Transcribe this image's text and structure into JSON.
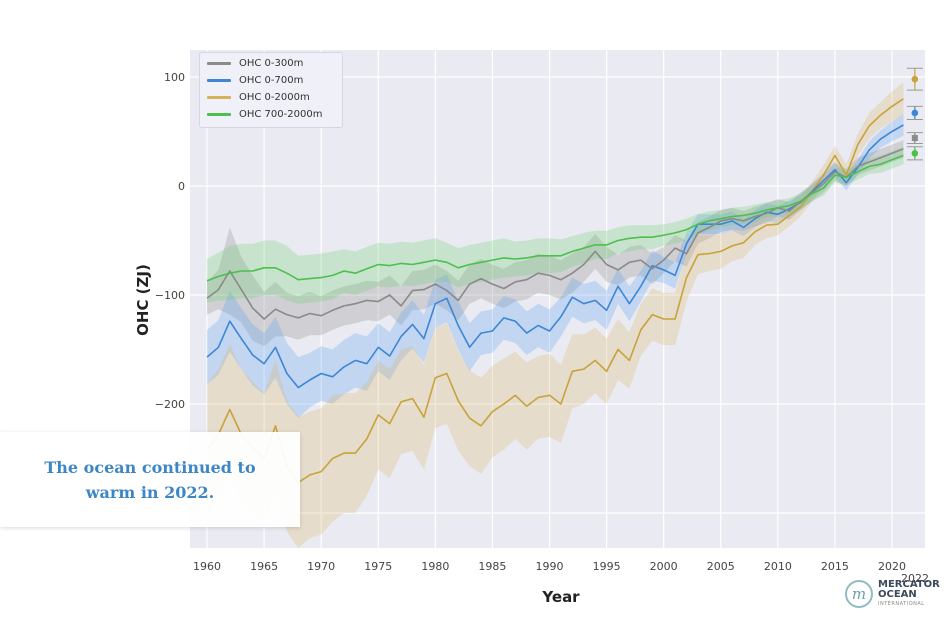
{
  "chart_data": {
    "type": "line",
    "title": "",
    "xlabel": "Year",
    "ylabel": "OHC (ZJ)",
    "xlim": [
      1958.5,
      2023
    ],
    "ylim": [
      -330,
      122
    ],
    "grid": true,
    "legend_position": "top-left",
    "x_ticks": [
      "1960",
      "1965",
      "1970",
      "1975",
      "1980",
      "1985",
      "1990",
      "1995",
      "2000",
      "2005",
      "2010",
      "2015",
      "2020"
    ],
    "y_ticks": [
      "100",
      "0",
      "−100",
      "−200"
    ],
    "extra_x_label": "2022",
    "x": [
      1960,
      1961,
      1962,
      1963,
      1964,
      1965,
      1966,
      1967,
      1968,
      1969,
      1970,
      1971,
      1972,
      1973,
      1974,
      1975,
      1976,
      1977,
      1978,
      1979,
      1980,
      1981,
      1982,
      1983,
      1984,
      1985,
      1986,
      1987,
      1988,
      1989,
      1990,
      1991,
      1992,
      1993,
      1994,
      1995,
      1996,
      1997,
      1998,
      1999,
      2000,
      2001,
      2002,
      2003,
      2004,
      2005,
      2006,
      2007,
      2008,
      2009,
      2010,
      2011,
      2012,
      2013,
      2014,
      2015,
      2016,
      2017,
      2018,
      2019,
      2020,
      2021
    ],
    "series": [
      {
        "name": "OHC 0-300m",
        "color": "#8a8a8a",
        "band_color": "#8a8a8a",
        "values": [
          -103,
          -95,
          -78,
          -95,
          -112,
          -122,
          -113,
          -118,
          -121,
          -117,
          -119,
          -114,
          -110,
          -108,
          -105,
          -106,
          -100,
          -110,
          -96,
          -95,
          -90,
          -96,
          -105,
          -90,
          -85,
          -90,
          -94,
          -88,
          -86,
          -80,
          -82,
          -86,
          -80,
          -72,
          -60,
          -72,
          -77,
          -70,
          -68,
          -76,
          -68,
          -57,
          -62,
          -43,
          -38,
          -32,
          -30,
          -32,
          -28,
          -25,
          -20,
          -23,
          -14,
          -6,
          2,
          13,
          8,
          18,
          22,
          26,
          30,
          34
        ],
        "band": [
          15,
          18,
          40,
          30,
          30,
          25,
          25,
          20,
          20,
          20,
          18,
          18,
          18,
          18,
          18,
          18,
          18,
          18,
          18,
          18,
          18,
          18,
          18,
          18,
          18,
          18,
          18,
          18,
          18,
          18,
          18,
          18,
          18,
          16,
          16,
          16,
          14,
          14,
          14,
          14,
          12,
          12,
          12,
          10,
          10,
          10,
          10,
          9,
          9,
          9,
          8,
          8,
          8,
          8,
          8,
          8,
          8,
          8,
          8,
          8,
          8,
          8
        ]
      },
      {
        "name": "OHC 0-700m",
        "color": "#3d86d6",
        "band_color": "#5aa0f0",
        "values": [
          -157,
          -148,
          -124,
          -140,
          -155,
          -163,
          -148,
          -172,
          -185,
          -178,
          -172,
          -175,
          -166,
          -160,
          -163,
          -148,
          -156,
          -138,
          -127,
          -140,
          -108,
          -103,
          -128,
          -148,
          -135,
          -133,
          -121,
          -124,
          -135,
          -128,
          -133,
          -120,
          -102,
          -108,
          -105,
          -114,
          -92,
          -108,
          -92,
          -73,
          -77,
          -82,
          -53,
          -35,
          -35,
          -35,
          -32,
          -38,
          -30,
          -24,
          -26,
          -21,
          -15,
          -5,
          5,
          15,
          3,
          17,
          33,
          43,
          50,
          56
        ],
        "band": [
          25,
          25,
          28,
          28,
          28,
          28,
          28,
          28,
          28,
          25,
          25,
          25,
          25,
          25,
          25,
          22,
          22,
          22,
          22,
          22,
          22,
          22,
          22,
          22,
          20,
          20,
          20,
          20,
          20,
          20,
          20,
          18,
          18,
          18,
          18,
          18,
          16,
          16,
          14,
          14,
          12,
          12,
          10,
          9,
          9,
          9,
          9,
          8,
          8,
          8,
          8,
          8,
          7,
          7,
          7,
          7,
          7,
          7,
          8,
          8,
          9,
          10
        ]
      },
      {
        "name": "OHC 0-2000m",
        "color": "#c9a23a",
        "band_color": "#d9b66a",
        "values": [
          -242,
          -228,
          -205,
          -228,
          -240,
          -250,
          -220,
          -257,
          -272,
          -265,
          -262,
          -250,
          -245,
          -245,
          -232,
          -210,
          -218,
          -198,
          -195,
          -212,
          -176,
          -172,
          -197,
          -213,
          -220,
          -207,
          -200,
          -192,
          -202,
          -194,
          -192,
          -200,
          -170,
          -168,
          -160,
          -170,
          -150,
          -160,
          -132,
          -118,
          -122,
          -122,
          -84,
          -63,
          -62,
          -60,
          -55,
          -52,
          -42,
          -36,
          -35,
          -27,
          -19,
          -5,
          10,
          28,
          10,
          38,
          55,
          65,
          73,
          80
        ],
        "band": [
          60,
          60,
          60,
          60,
          60,
          60,
          60,
          60,
          60,
          58,
          58,
          58,
          55,
          55,
          52,
          50,
          50,
          48,
          48,
          48,
          46,
          46,
          46,
          44,
          44,
          42,
          42,
          40,
          40,
          38,
          38,
          36,
          34,
          32,
          30,
          30,
          28,
          26,
          24,
          24,
          24,
          24,
          22,
          18,
          16,
          16,
          14,
          14,
          12,
          12,
          10,
          10,
          9,
          9,
          9,
          9,
          10,
          10,
          12,
          12,
          14,
          15
        ]
      },
      {
        "name": "OHC 700-2000m",
        "color": "#4cbf4c",
        "band_color": "#6fd06f",
        "values": [
          -87,
          -83,
          -80,
          -78,
          -78,
          -75,
          -75,
          -80,
          -86,
          -85,
          -84,
          -82,
          -78,
          -80,
          -76,
          -72,
          -73,
          -71,
          -72,
          -70,
          -68,
          -70,
          -75,
          -72,
          -70,
          -68,
          -66,
          -67,
          -66,
          -64,
          -64,
          -64,
          -60,
          -57,
          -54,
          -54,
          -50,
          -48,
          -47,
          -47,
          -45,
          -43,
          -40,
          -35,
          -32,
          -30,
          -28,
          -27,
          -25,
          -22,
          -20,
          -18,
          -14,
          -7,
          -2,
          10,
          8,
          13,
          18,
          20,
          24,
          28
        ],
        "band": [
          20,
          22,
          25,
          25,
          25,
          25,
          25,
          25,
          22,
          22,
          22,
          22,
          20,
          20,
          20,
          20,
          20,
          20,
          20,
          20,
          20,
          18,
          18,
          18,
          18,
          18,
          18,
          16,
          16,
          16,
          16,
          15,
          14,
          14,
          13,
          13,
          12,
          12,
          11,
          11,
          10,
          10,
          10,
          9,
          9,
          8,
          8,
          8,
          8,
          7,
          7,
          7,
          7,
          7,
          7,
          7,
          7,
          7,
          7,
          8,
          8,
          8
        ]
      }
    ],
    "points_2022": [
      {
        "series": "OHC 0-2000m",
        "x": 2022,
        "value": 98,
        "err": 10
      },
      {
        "series": "OHC 0-700m",
        "x": 2022,
        "value": 67,
        "err": 6
      },
      {
        "series": "OHC 0-300m",
        "x": 2022,
        "value": 44,
        "err": 5
      },
      {
        "series": "OHC 700-2000m",
        "x": 2022,
        "value": 30,
        "err": 6
      }
    ]
  },
  "caption": {
    "line1": "The ocean continued to",
    "line2": "warm in 2022."
  },
  "logo": {
    "line1": "MERCATOR",
    "line2": "OCEAN",
    "line3": "INTERNATIONAL",
    "mark": "m"
  }
}
